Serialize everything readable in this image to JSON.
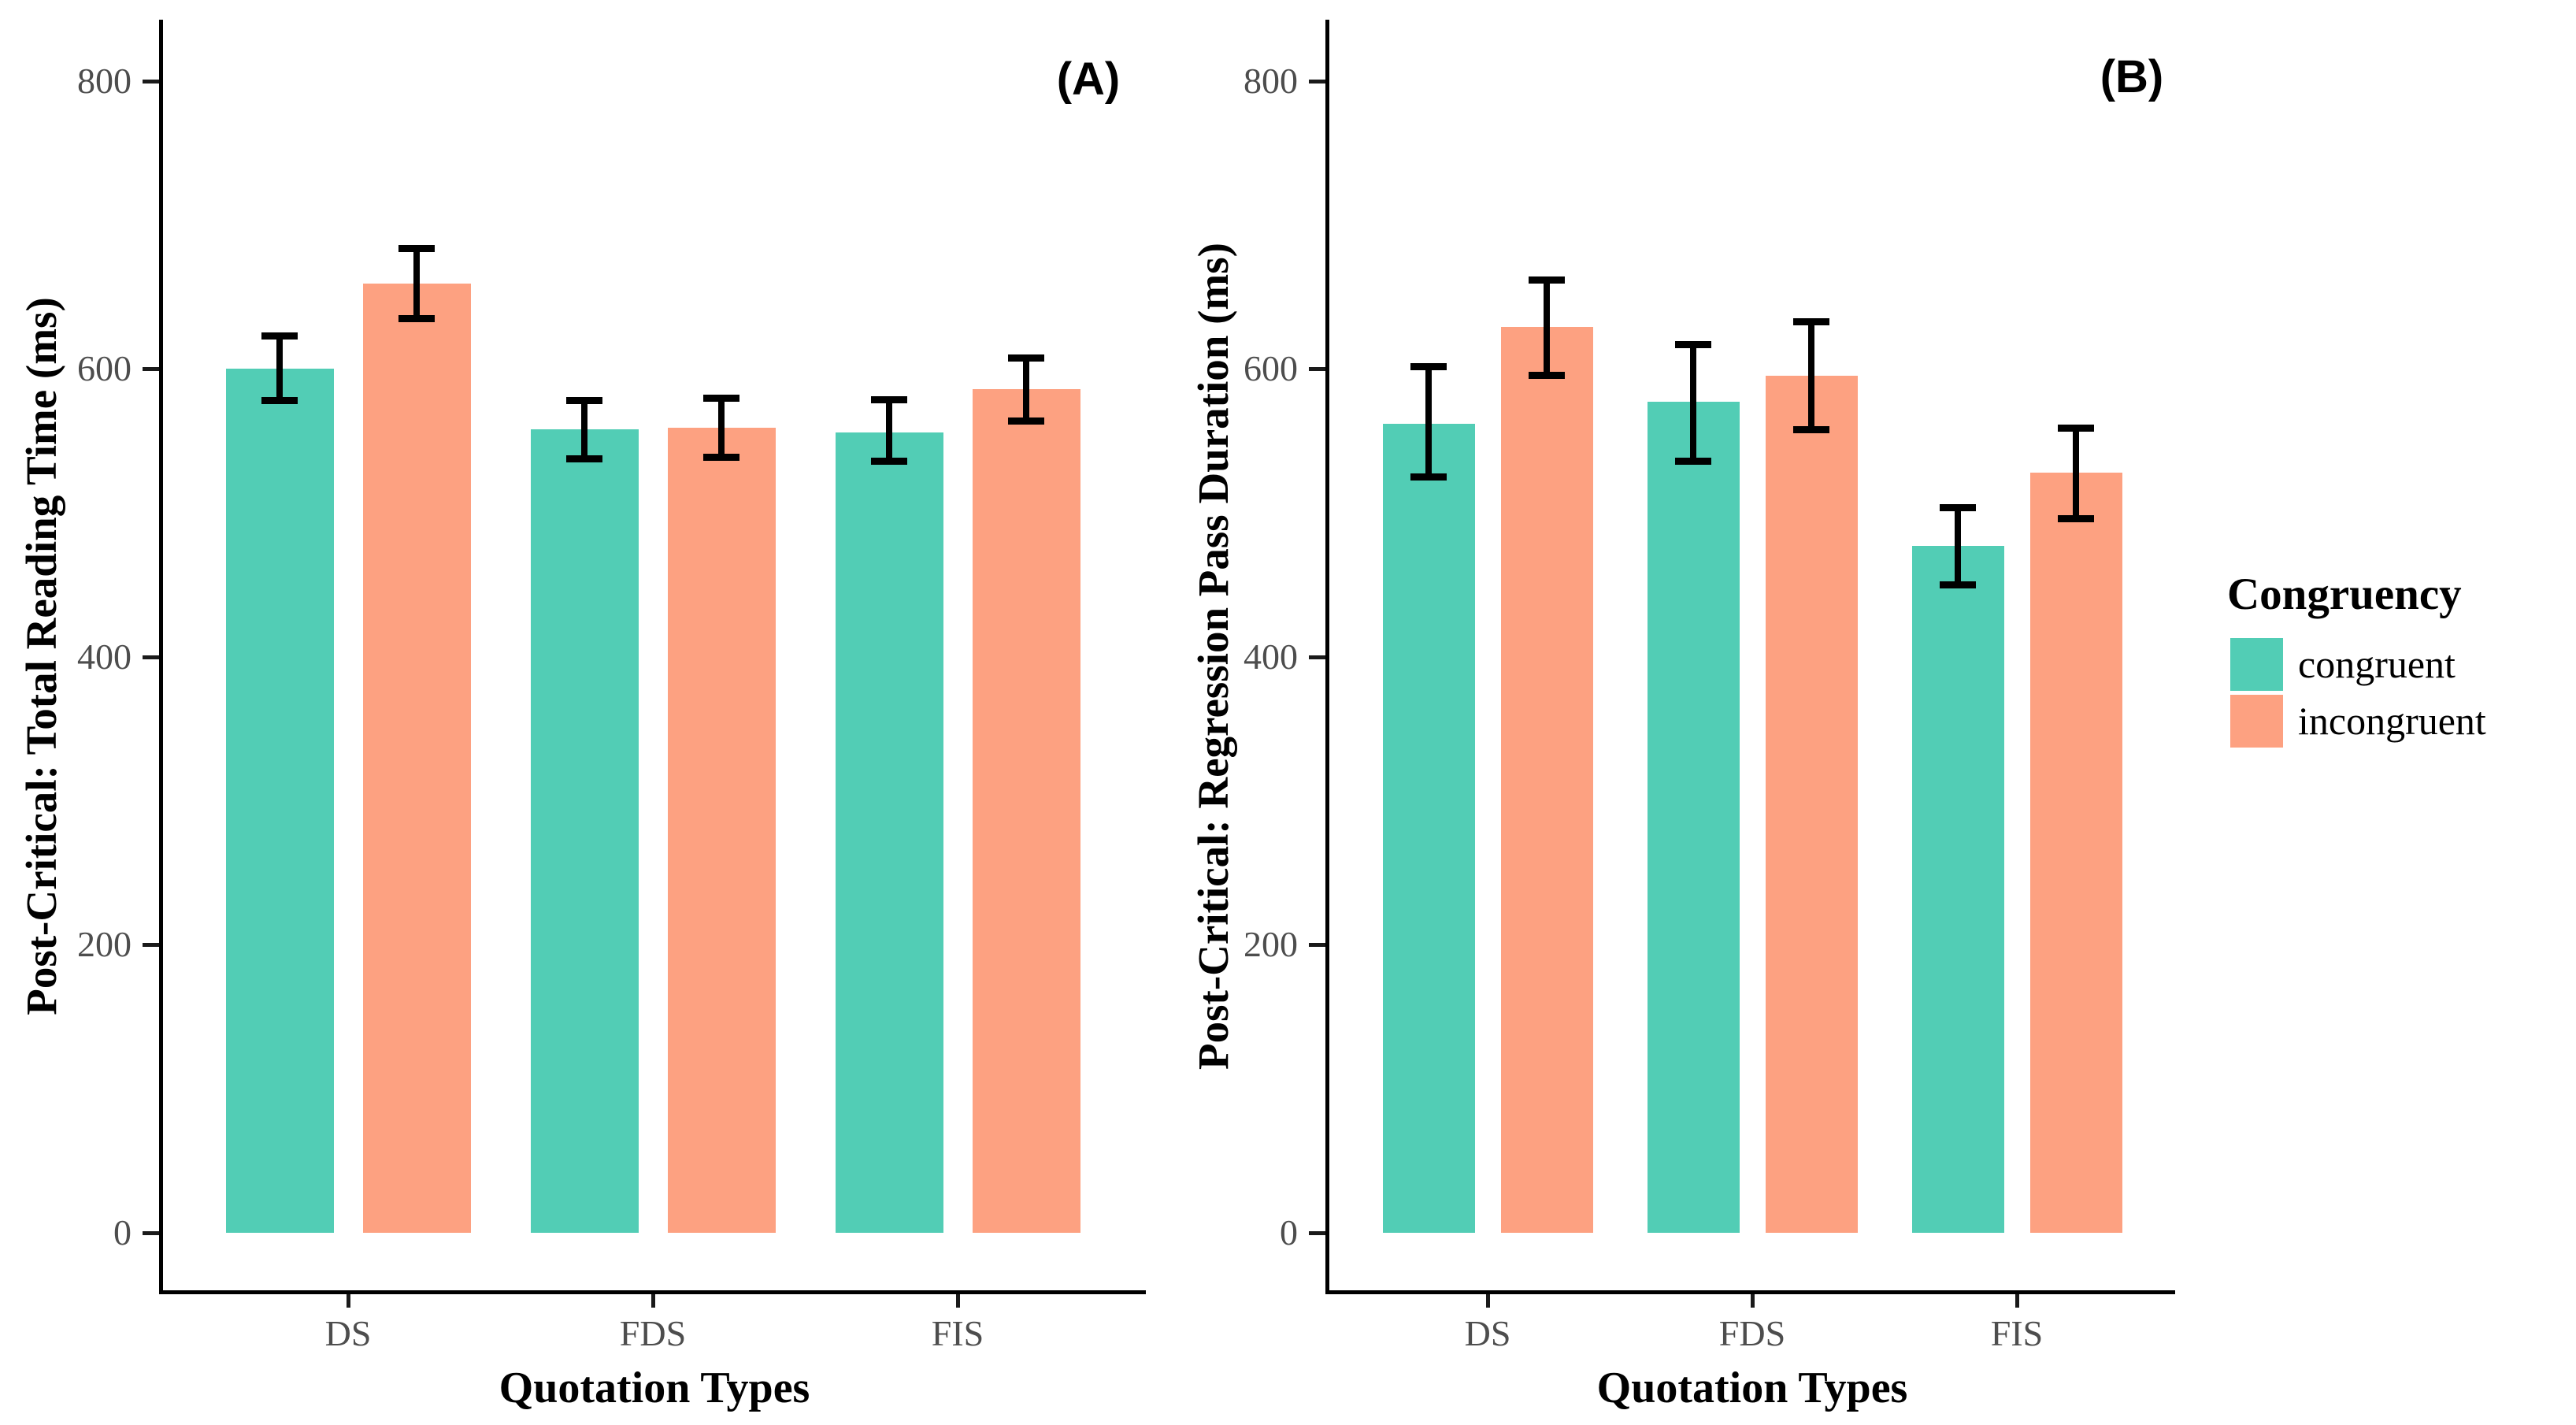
{
  "legend": {
    "title": "Congruency",
    "items": [
      {
        "label": "congruent",
        "color": "#52CDB5"
      },
      {
        "label": "incongruent",
        "color": "#FDA181"
      }
    ]
  },
  "chart_data": [
    {
      "type": "bar",
      "panel_label": "(A)",
      "title": "",
      "xlabel": "Quotation Types",
      "ylabel": "Post-Critical: Total Reading Time (ms)",
      "categories": [
        "DS",
        "FDS",
        "FIS"
      ],
      "yticks": [
        0,
        200,
        400,
        600,
        800
      ],
      "ylim": [
        0,
        840
      ],
      "grid": "off",
      "legend_position": "right of panel B",
      "series": [
        {
          "name": "congruent",
          "color": "#52CDB5",
          "values": [
            600,
            558,
            556
          ],
          "ci_low": [
            578,
            538,
            536
          ],
          "ci_high": [
            623,
            578,
            579
          ]
        },
        {
          "name": "incongruent",
          "color": "#FDA181",
          "values": [
            659,
            559,
            586
          ],
          "ci_low": [
            635,
            539,
            564
          ],
          "ci_high": [
            684,
            580,
            608
          ]
        }
      ]
    },
    {
      "type": "bar",
      "panel_label": "(B)",
      "title": "",
      "xlabel": "Quotation Types",
      "ylabel": "Post-Critical: Regression Pass Duration (ms)",
      "categories": [
        "DS",
        "FDS",
        "FIS"
      ],
      "yticks": [
        0,
        200,
        400,
        600,
        800
      ],
      "ylim": [
        0,
        840
      ],
      "grid": "off",
      "series": [
        {
          "name": "congruent",
          "color": "#52CDB5",
          "values": [
            562,
            577,
            477
          ],
          "ci_low": [
            525,
            536,
            450
          ],
          "ci_high": [
            602,
            617,
            504
          ]
        },
        {
          "name": "incongruent",
          "color": "#FDA181",
          "values": [
            629,
            595,
            528
          ],
          "ci_low": [
            596,
            558,
            496
          ],
          "ci_high": [
            662,
            633,
            559
          ]
        }
      ]
    }
  ]
}
